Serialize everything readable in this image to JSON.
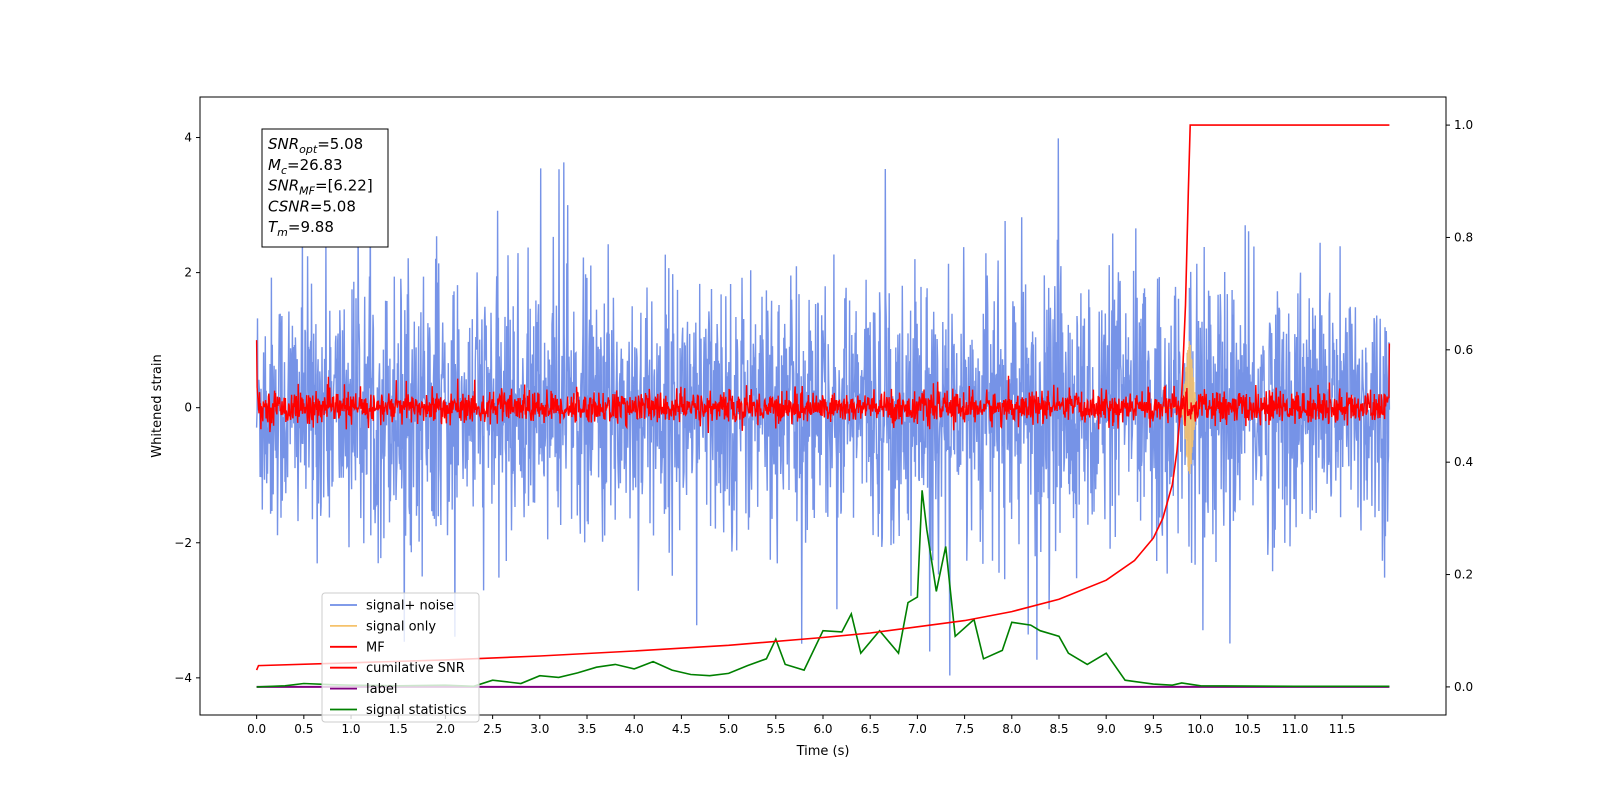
{
  "chart_data": {
    "type": "line",
    "xlabel": "Time (s)",
    "ylabel": "Whitened strain",
    "xlim": [
      -0.6,
      12.6
    ],
    "ylim": [
      -4.55,
      4.6
    ],
    "y2lim": [
      -0.05,
      1.05
    ],
    "x_ticks": [
      0.0,
      0.5,
      1.0,
      1.5,
      2.0,
      2.5,
      3.0,
      3.5,
      4.0,
      4.5,
      5.0,
      5.5,
      6.0,
      6.5,
      7.0,
      7.5,
      8.0,
      8.5,
      9.0,
      9.5,
      10.0,
      10.5,
      11.0,
      11.5
    ],
    "x_tick_labels": [
      "0.0",
      "0.5",
      "1.0",
      "1.5",
      "2.0",
      "2.5",
      "3.0",
      "3.5",
      "4.0",
      "4.5",
      "5.0",
      "5.5",
      "6.0",
      "6.5",
      "7.0",
      "7.5",
      "8.0",
      "8.5",
      "9.0",
      "9.5",
      "10.0",
      "10.5",
      "11.0",
      "11.5"
    ],
    "y_ticks": [
      -4,
      -2,
      0,
      2,
      4
    ],
    "y_tick_labels": [
      "−4",
      "−2",
      "0",
      "2",
      "4"
    ],
    "y2_ticks": [
      0.0,
      0.2,
      0.4,
      0.6,
      0.8,
      1.0
    ],
    "y2_tick_labels": [
      "0.0",
      "0.2",
      "0.4",
      "0.6",
      "0.8",
      "1.0"
    ],
    "grid": false,
    "legend_position": "lower-left",
    "colors": {
      "signal_noise": "#6f8de6",
      "signal_only": "#f5c26b",
      "mf": "#ff0000",
      "cumulative_snr": "#ff0000",
      "label": "#800080",
      "signal_statistics": "#008000"
    },
    "series": [
      {
        "name": "signal+ noise",
        "key": "signal_noise",
        "axis": "left",
        "description_values": {
          "time_range": [
            0.0,
            12.0
          ],
          "approx_amplitude": 2.6
        }
      },
      {
        "name": "signal only",
        "key": "signal_only",
        "axis": "left",
        "description_values": {
          "center": 9.88,
          "approx_amplitude": 1.0
        }
      },
      {
        "name": "MF",
        "key": "mf",
        "axis": "left",
        "description_values": {
          "approx_amplitude": 0.3
        }
      },
      {
        "name": "cumilative SNR",
        "key": "cumulative_snr",
        "axis": "right",
        "points": [
          [
            0.0,
            0.03
          ],
          [
            0.02,
            0.038
          ],
          [
            1.0,
            0.043
          ],
          [
            2.0,
            0.048
          ],
          [
            3.0,
            0.055
          ],
          [
            4.0,
            0.064
          ],
          [
            5.0,
            0.074
          ],
          [
            6.0,
            0.088
          ],
          [
            6.5,
            0.096
          ],
          [
            7.0,
            0.107
          ],
          [
            7.5,
            0.118
          ],
          [
            8.0,
            0.134
          ],
          [
            8.5,
            0.156
          ],
          [
            9.0,
            0.19
          ],
          [
            9.3,
            0.225
          ],
          [
            9.5,
            0.265
          ],
          [
            9.6,
            0.3
          ],
          [
            9.7,
            0.36
          ],
          [
            9.75,
            0.42
          ],
          [
            9.8,
            0.52
          ],
          [
            9.84,
            0.68
          ],
          [
            9.87,
            0.88
          ],
          [
            9.89,
            1.0
          ],
          [
            12.0,
            1.0
          ]
        ]
      },
      {
        "name": "label",
        "key": "label",
        "axis": "right",
        "points": [
          [
            0.0,
            0.0
          ],
          [
            12.0,
            0.0
          ]
        ]
      },
      {
        "name": "signal statistics",
        "key": "signal_statistics",
        "axis": "right",
        "points": [
          [
            0.0,
            0.0
          ],
          [
            0.3,
            0.002
          ],
          [
            0.5,
            0.006
          ],
          [
            0.8,
            0.004
          ],
          [
            1.0,
            0.003
          ],
          [
            1.5,
            0.002
          ],
          [
            2.0,
            0.003
          ],
          [
            2.3,
            0.001
          ],
          [
            2.5,
            0.012
          ],
          [
            2.8,
            0.006
          ],
          [
            3.0,
            0.02
          ],
          [
            3.2,
            0.017
          ],
          [
            3.4,
            0.025
          ],
          [
            3.6,
            0.035
          ],
          [
            3.8,
            0.04
          ],
          [
            4.0,
            0.032
          ],
          [
            4.2,
            0.045
          ],
          [
            4.4,
            0.03
          ],
          [
            4.6,
            0.022
          ],
          [
            4.8,
            0.02
          ],
          [
            5.0,
            0.024
          ],
          [
            5.2,
            0.038
          ],
          [
            5.4,
            0.05
          ],
          [
            5.5,
            0.085
          ],
          [
            5.6,
            0.04
          ],
          [
            5.8,
            0.03
          ],
          [
            6.0,
            0.1
          ],
          [
            6.2,
            0.098
          ],
          [
            6.3,
            0.13
          ],
          [
            6.4,
            0.06
          ],
          [
            6.6,
            0.1
          ],
          [
            6.8,
            0.06
          ],
          [
            6.9,
            0.15
          ],
          [
            7.0,
            0.16
          ],
          [
            7.05,
            0.35
          ],
          [
            7.1,
            0.28
          ],
          [
            7.2,
            0.17
          ],
          [
            7.3,
            0.25
          ],
          [
            7.4,
            0.09
          ],
          [
            7.6,
            0.12
          ],
          [
            7.7,
            0.05
          ],
          [
            7.9,
            0.065
          ],
          [
            8.0,
            0.115
          ],
          [
            8.2,
            0.11
          ],
          [
            8.3,
            0.1
          ],
          [
            8.5,
            0.09
          ],
          [
            8.6,
            0.06
          ],
          [
            8.8,
            0.04
          ],
          [
            9.0,
            0.06
          ],
          [
            9.2,
            0.012
          ],
          [
            9.5,
            0.005
          ],
          [
            9.7,
            0.003
          ],
          [
            9.8,
            0.007
          ],
          [
            10.0,
            0.002
          ],
          [
            11.0,
            0.001
          ],
          [
            12.0,
            0.001
          ]
        ]
      }
    ],
    "annotation": {
      "lines": [
        {
          "symbol": "SNR",
          "sub": "opt",
          "value": "=5.08"
        },
        {
          "symbol": "M",
          "sub": "c",
          "value": "=26.83"
        },
        {
          "symbol": "SNR",
          "sub": "MF",
          "value": "=[6.22]"
        },
        {
          "symbol": "CSNR",
          "sub": "",
          "value": "=5.08"
        },
        {
          "symbol": "T",
          "sub": "m",
          "value": "=9.88"
        }
      ]
    }
  }
}
